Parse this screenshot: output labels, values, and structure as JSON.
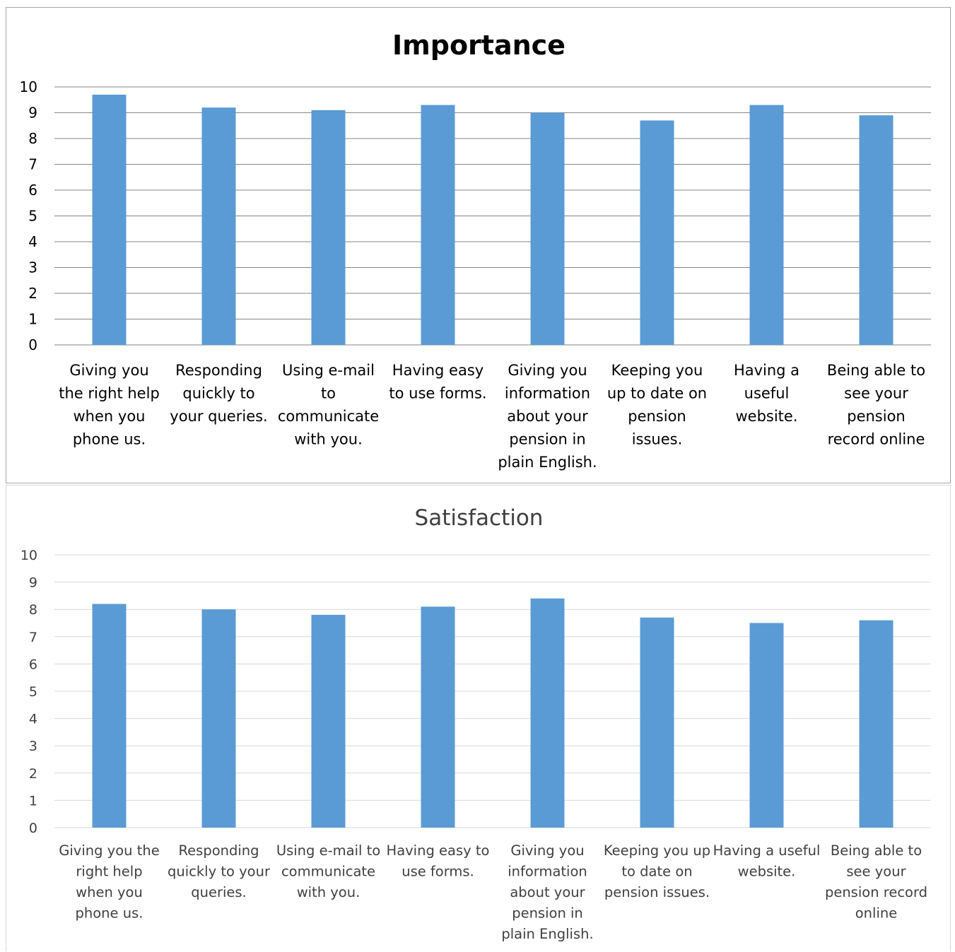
{
  "chart_data": [
    {
      "type": "bar",
      "title": "Importance",
      "xlabel": "",
      "ylabel": "",
      "ylim": [
        0,
        10
      ],
      "yticks": [
        0,
        1,
        2,
        3,
        4,
        5,
        6,
        7,
        8,
        9,
        10
      ],
      "grid": true,
      "legend": "none",
      "bar_color": "#5b9bd5",
      "categories": [
        [
          "Giving you",
          "the right help",
          "when you",
          "phone us."
        ],
        [
          "Responding",
          "quickly to",
          "your queries."
        ],
        [
          "Using e-mail",
          "to",
          "communicate",
          "with you."
        ],
        [
          "Having easy",
          "to use forms."
        ],
        [
          "Giving you",
          "information",
          "about your",
          "pension in",
          "plain English."
        ],
        [
          "Keeping you",
          "up to date on",
          "pension",
          "issues."
        ],
        [
          "Having a",
          "useful",
          "website."
        ],
        [
          "Being able to",
          "see your",
          "pension",
          "record online"
        ]
      ],
      "values": [
        9.7,
        9.2,
        9.1,
        9.3,
        9.0,
        8.7,
        9.3,
        8.9
      ]
    },
    {
      "type": "bar",
      "title": "Satisfaction",
      "xlabel": "",
      "ylabel": "",
      "ylim": [
        0,
        10
      ],
      "yticks": [
        0,
        1,
        2,
        3,
        4,
        5,
        6,
        7,
        8,
        9,
        10
      ],
      "grid": true,
      "legend": "none",
      "bar_color": "#5b9bd5",
      "categories": [
        [
          "Giving you the",
          "right help",
          "when you",
          "phone us."
        ],
        [
          "Responding",
          "quickly to your",
          "queries."
        ],
        [
          "Using e-mail to",
          "communicate",
          "with you."
        ],
        [
          "Having easy to",
          "use forms."
        ],
        [
          "Giving you",
          "information",
          "about your",
          "pension in",
          "plain English."
        ],
        [
          "Keeping you up",
          "to date on",
          "pension issues."
        ],
        [
          "Having a useful",
          "website."
        ],
        [
          "Being able to",
          "see your",
          "pension record",
          "online"
        ]
      ],
      "values": [
        8.2,
        8.0,
        7.8,
        8.1,
        8.4,
        7.7,
        7.5,
        7.6
      ]
    }
  ]
}
